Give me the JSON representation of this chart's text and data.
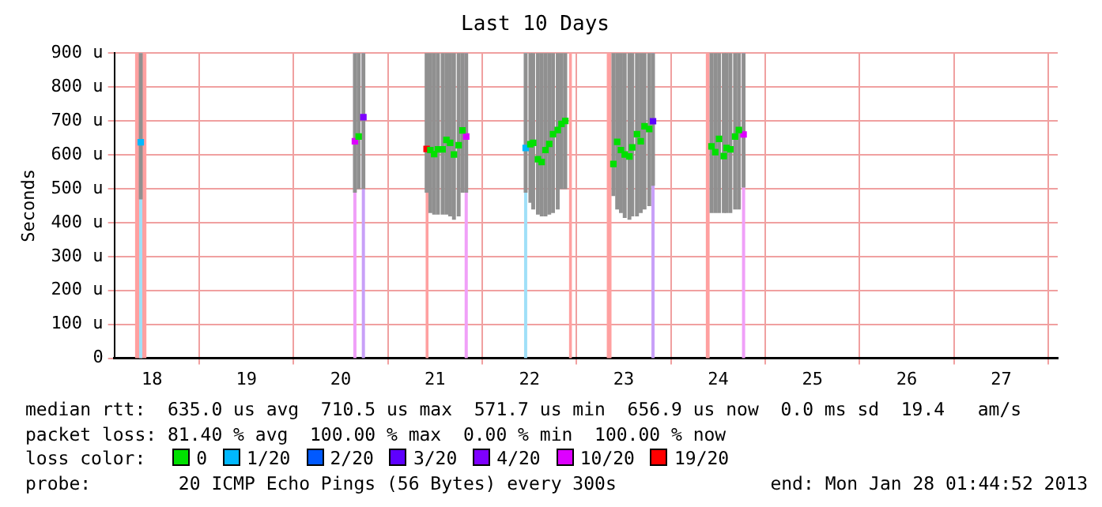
{
  "chart_data": {
    "type": "scatter",
    "title": "Last 10 Days",
    "ylabel": "Seconds",
    "xlim": [
      17.6,
      27.6
    ],
    "xticks": [
      18,
      19,
      20,
      21,
      22,
      23,
      24,
      25,
      26,
      27
    ],
    "ylim": [
      0,
      900
    ],
    "yticks": [
      0,
      {
        "value": 100,
        "label": "100 u"
      },
      {
        "value": 200,
        "label": "200 u"
      },
      {
        "value": 300,
        "label": "300 u"
      },
      {
        "value": 400,
        "label": "400 u"
      },
      {
        "value": 500,
        "label": "500 u"
      },
      {
        "value": 600,
        "label": "600 u"
      },
      {
        "value": 700,
        "label": "700 u"
      },
      {
        "value": 800,
        "label": "800 u"
      },
      {
        "value": 900,
        "label": "900 u"
      }
    ],
    "grid": true,
    "marker": "square",
    "legend": "bottom",
    "legend_title": "loss color:",
    "series": [
      {
        "type": "bar",
        "color": "#909090",
        "x": [
          17.88,
          20.15,
          20.19,
          20.24,
          20.91,
          20.95,
          20.99,
          21.03,
          21.08,
          21.12,
          21.16,
          21.2,
          21.25,
          21.29,
          21.33,
          21.96,
          22.01,
          22.04,
          22.09,
          22.13,
          22.17,
          22.21,
          22.25,
          22.3,
          22.34,
          22.38,
          22.89,
          22.93,
          22.97,
          23.01,
          23.06,
          23.09,
          23.14,
          23.18,
          23.22,
          23.27,
          23.31,
          23.93,
          23.97,
          24.01,
          24.06,
          24.09,
          24.13,
          24.18,
          24.22,
          24.27
        ],
        "base": [
          470,
          490,
          500,
          500,
          490,
          430,
          425,
          425,
          425,
          425,
          420,
          410,
          420,
          490,
          490,
          490,
          460,
          440,
          425,
          420,
          420,
          425,
          430,
          440,
          500,
          500,
          480,
          440,
          430,
          415,
          410,
          420,
          420,
          430,
          440,
          450,
          510,
          430,
          430,
          430,
          430,
          430,
          430,
          440,
          440,
          505
        ],
        "values": [
          430,
          410,
          400,
          400,
          410,
          470,
          475,
          475,
          475,
          475,
          480,
          490,
          480,
          410,
          410,
          410,
          440,
          460,
          475,
          480,
          480,
          475,
          470,
          460,
          400,
          400,
          420,
          460,
          470,
          485,
          490,
          480,
          480,
          470,
          460,
          450,
          390,
          470,
          470,
          470,
          470,
          470,
          470,
          460,
          460,
          395
        ]
      },
      {
        "name": "0",
        "color": "#00e000",
        "x": [
          20.19,
          20.95,
          20.99,
          21.03,
          21.08,
          21.12,
          21.16,
          21.2,
          21.25,
          21.29,
          22.01,
          22.04,
          22.09,
          22.13,
          22.17,
          22.21,
          22.25,
          22.3,
          22.34,
          22.38,
          22.89,
          22.93,
          22.97,
          23.01,
          23.06,
          23.09,
          23.14,
          23.18,
          23.22,
          23.27,
          23.93,
          23.97,
          24.01,
          24.06,
          24.09,
          24.13,
          24.18,
          24.22
        ],
        "values": [
          654,
          614,
          602,
          616,
          616,
          644,
          635,
          601,
          628,
          672,
          631,
          635,
          587,
          579,
          614,
          632,
          661,
          673,
          691,
          700,
          573,
          638,
          614,
          601,
          595,
          622,
          661,
          640,
          684,
          676,
          625,
          608,
          647,
          596,
          620,
          616,
          654,
          673
        ]
      },
      {
        "name": "1/20",
        "color": "#00b8ff",
        "x": [
          17.88,
          21.96
        ],
        "values": [
          637,
          620
        ]
      },
      {
        "name": "2/20",
        "color": "#0059ff"
      },
      {
        "name": "3/20",
        "color": "#5e00ff",
        "x": [
          23.31
        ],
        "values": [
          699
        ]
      },
      {
        "name": "4/20",
        "color": "#7e00ff",
        "x": [
          20.24
        ],
        "values": [
          711
        ]
      },
      {
        "name": "10/20",
        "color": "#dd00ff",
        "x": [
          20.15,
          21.33,
          24.27
        ],
        "values": [
          640,
          654,
          660
        ]
      },
      {
        "name": "19/20",
        "color": "#ff0000",
        "x": [
          20.91
        ],
        "values": [
          617
        ]
      }
    ],
    "bands": [
      {
        "axis": "x",
        "from": 17.82,
        "to": 17.94,
        "color": "#ffa0a0"
      },
      {
        "axis": "x",
        "from": 20.9,
        "to": 20.93,
        "color": "#ffa0a0"
      },
      {
        "axis": "x",
        "from": 22.42,
        "to": 22.45,
        "color": "#ffa0a0"
      },
      {
        "axis": "x",
        "from": 22.82,
        "to": 22.87,
        "color": "#ffa0a0"
      },
      {
        "axis": "x",
        "from": 23.87,
        "to": 23.91,
        "color": "#ffa0a0"
      }
    ],
    "ref_lines": [
      {
        "axis": "x",
        "value": 17.88,
        "color": "#a0e0f8"
      },
      {
        "axis": "x",
        "value": 20.15,
        "color": "#f0a0f8"
      },
      {
        "axis": "x",
        "value": 20.24,
        "color": "#c8a0f8"
      },
      {
        "axis": "x",
        "value": 21.33,
        "color": "#f0a0f8"
      },
      {
        "axis": "x",
        "value": 21.96,
        "color": "#a0e0f8"
      },
      {
        "axis": "x",
        "value": 23.31,
        "color": "#c8a0f8"
      },
      {
        "axis": "x",
        "value": 24.27,
        "color": "#f0a0f8"
      }
    ],
    "annotations": [
      "median rtt:  635.0 us avg  710.5 us max  571.7 us min  656.9 us now  0.0 ms sd  19.4   am/s",
      "packet loss: 81.40 % avg  100.00 % max  0.00 % min  100.00 % now",
      "probe:        20 ICMP Echo Pings (56 Bytes) every 300s",
      "end: Mon Jan 28 01:44:52 2013"
    ]
  }
}
